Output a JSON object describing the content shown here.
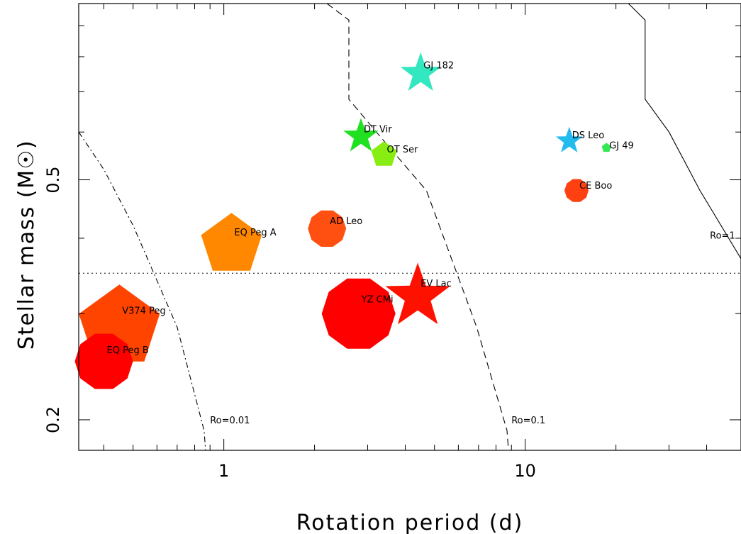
{
  "chart_data": {
    "type": "scatter",
    "xlabel": "Rotation period (d)",
    "ylabel": "Stellar mass (M☉)",
    "xscale": "log",
    "yscale": "log",
    "xlim": [
      0.33,
      52
    ],
    "ylim": [
      0.178,
      0.98
    ],
    "x_tick_labels": [
      {
        "value": 1,
        "label": "1"
      },
      {
        "value": 10,
        "label": "10"
      }
    ],
    "y_tick_labels": [
      {
        "value": 0.2,
        "label": "0.2"
      },
      {
        "value": 0.5,
        "label": "0.5"
      }
    ],
    "x_minor_ticks": [
      0.4,
      0.5,
      0.6,
      0.7,
      0.8,
      0.9,
      2,
      3,
      4,
      5,
      6,
      7,
      8,
      9,
      20,
      30,
      40
    ],
    "y_minor_ticks": [
      0.3,
      0.4,
      0.6,
      0.7,
      0.8,
      0.9
    ],
    "hline": {
      "y": 0.35,
      "style": "dotted"
    },
    "curves": [
      {
        "label": "Ro=0.01",
        "style": "dashdot",
        "points": [
          [
            0.33,
            0.6
          ],
          [
            0.4,
            0.52
          ],
          [
            0.5,
            0.42
          ],
          [
            0.7,
            0.285
          ],
          [
            0.86,
            0.192
          ],
          [
            0.87,
            0.178
          ]
        ],
        "label_at": [
          0.9,
          0.2
        ]
      },
      {
        "label": "Ro=0.1",
        "style": "dashed",
        "points": [
          [
            2.2,
            0.98
          ],
          [
            2.6,
            0.92
          ],
          [
            2.6,
            0.68
          ],
          [
            3.3,
            0.59
          ],
          [
            4.7,
            0.48
          ],
          [
            6.9,
            0.285
          ],
          [
            8.7,
            0.192
          ],
          [
            8.8,
            0.178
          ]
        ],
        "label_at": [
          9.0,
          0.2
        ]
      },
      {
        "label": "Ro=1",
        "style": "solid",
        "points": [
          [
            22,
            0.98
          ],
          [
            25,
            0.92
          ],
          [
            25,
            0.68
          ],
          [
            30,
            0.6
          ],
          [
            38,
            0.48
          ],
          [
            52,
            0.37
          ]
        ],
        "label_at": [
          41,
          0.405
        ]
      }
    ],
    "points": [
      {
        "name": "GJ 182",
        "x": 4.5,
        "y": 0.75,
        "shape": "star",
        "size": 30,
        "color": "#33e8c0"
      },
      {
        "name": "DT Vir",
        "x": 2.85,
        "y": 0.59,
        "shape": "star",
        "size": 26,
        "color": "#20e020"
      },
      {
        "name": "OT Ser",
        "x": 3.4,
        "y": 0.55,
        "shape": "pentagon",
        "size": 19,
        "color": "#88ee11"
      },
      {
        "name": "DS Leo",
        "x": 14,
        "y": 0.58,
        "shape": "star",
        "size": 20,
        "color": "#22bbee"
      },
      {
        "name": "GJ 49",
        "x": 18.6,
        "y": 0.565,
        "shape": "pentagon",
        "size": 7,
        "color": "#33e855"
      },
      {
        "name": "CE Boo",
        "x": 14.8,
        "y": 0.48,
        "shape": "circle",
        "size": 17,
        "color": "#ff4011"
      },
      {
        "name": "AD Leo",
        "x": 2.2,
        "y": 0.415,
        "shape": "circle",
        "size": 27,
        "color": "#ff4f11"
      },
      {
        "name": "EQ Peg A",
        "x": 1.06,
        "y": 0.39,
        "shape": "pentagon",
        "size": 45,
        "color": "#ff8800"
      },
      {
        "name": "EV Lac",
        "x": 4.4,
        "y": 0.32,
        "shape": "star",
        "size": 48,
        "color": "#ff1100"
      },
      {
        "name": "YZ CMi",
        "x": 2.8,
        "y": 0.3,
        "shape": "circle",
        "size": 52,
        "color": "#ff0000"
      },
      {
        "name": "V374 Peg",
        "x": 0.45,
        "y": 0.285,
        "shape": "pentagon",
        "size": 60,
        "color": "#ff4400"
      },
      {
        "name": "EQ Peg B",
        "x": 0.4,
        "y": 0.25,
        "shape": "circle",
        "size": 41,
        "color": "#ff0000"
      }
    ]
  }
}
